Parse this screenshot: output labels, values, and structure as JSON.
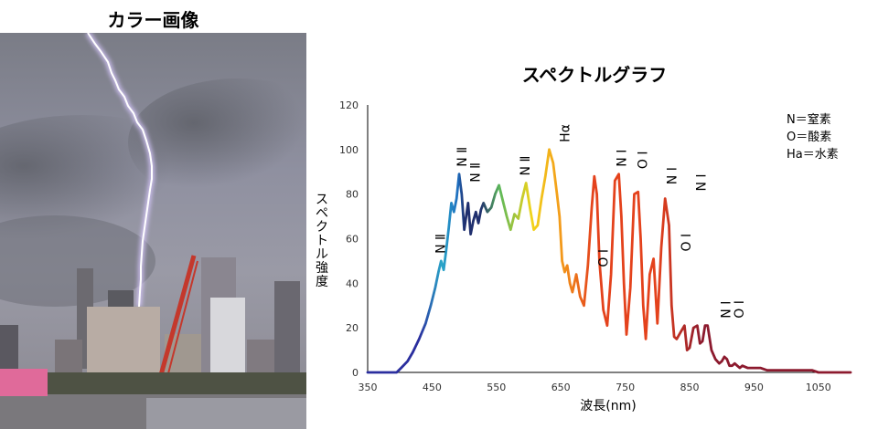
{
  "photo": {
    "title": "カラー画像"
  },
  "chart_data": {
    "type": "line",
    "title": "スペクトルグラフ",
    "xlabel": "波長(nm)",
    "ylabel": "スペクトル強度",
    "xlim": [
      350,
      1100
    ],
    "ylim": [
      0,
      120
    ],
    "xticks": [
      350,
      450,
      550,
      650,
      750,
      850,
      950,
      1050
    ],
    "yticks": [
      0,
      20,
      40,
      60,
      80,
      100,
      120
    ],
    "grid": false,
    "legend": [
      "N＝窒素",
      "O＝酸素",
      "Ha＝水素"
    ],
    "legend_position": "top-right",
    "colors": {
      "violet": "#2a2e9e",
      "blue": "#1f6fc0",
      "cyan": "#2aa7c9",
      "navy": "#1f2f6e",
      "green": "#5cb85a",
      "yellow": "#f2d41a",
      "orange": "#f39a1a",
      "red": "#e4421c",
      "darkred": "#8c1a2e"
    },
    "series": [
      {
        "x": [
          350,
          395,
          402,
          412,
          420,
          430,
          440,
          448,
          455,
          460,
          464,
          468,
          472,
          476,
          480,
          484,
          488,
          492,
          496,
          500,
          503,
          506,
          510,
          514,
          518,
          522,
          526,
          530,
          536,
          542,
          548,
          554,
          560,
          566,
          572,
          578,
          584,
          590,
          596,
          602,
          608,
          614,
          620,
          626,
          632,
          638,
          644,
          648,
          652,
          656,
          660,
          664,
          668,
          674,
          680,
          686,
          692,
          698,
          702,
          706,
          710,
          716,
          722,
          728,
          734,
          740,
          744,
          748,
          752,
          758,
          764,
          770,
          774,
          778,
          782,
          788,
          794,
          800,
          806,
          812,
          818,
          822,
          826,
          830,
          836,
          842,
          846,
          850,
          856,
          862,
          866,
          870,
          874,
          878,
          884,
          890,
          896,
          900,
          904,
          908,
          912,
          916,
          920,
          924,
          928,
          932,
          940,
          950,
          960,
          970,
          980,
          990,
          1000,
          1010,
          1020,
          1030,
          1040,
          1050,
          1060,
          1070,
          1080,
          1090,
          1100
        ],
        "y": [
          0,
          0,
          2,
          5,
          9,
          15,
          22,
          30,
          38,
          45,
          50,
          46,
          55,
          65,
          76,
          72,
          78,
          89,
          80,
          64,
          70,
          76,
          62,
          68,
          72,
          67,
          73,
          76,
          72,
          74,
          80,
          84,
          77,
          70,
          64,
          71,
          69,
          78,
          85,
          74,
          64,
          66,
          78,
          88,
          100,
          94,
          80,
          70,
          50,
          45,
          48,
          40,
          36,
          44,
          34,
          30,
          48,
          74,
          88,
          80,
          50,
          28,
          21,
          44,
          86,
          89,
          70,
          40,
          17,
          38,
          80,
          81,
          60,
          30,
          15,
          44,
          51,
          22,
          56,
          78,
          66,
          30,
          16,
          15,
          18,
          21,
          10,
          11,
          20,
          21,
          13,
          14,
          21,
          21,
          10,
          6,
          4,
          5,
          7,
          6,
          3,
          3,
          4,
          3,
          2,
          3,
          2,
          2,
          2,
          1,
          1,
          1,
          1,
          1,
          1,
          1,
          1,
          0,
          0,
          0,
          0,
          0,
          0
        ]
      }
    ],
    "annotations": [
      {
        "text": "N Ⅱ",
        "x": 463,
        "y": 50
      },
      {
        "text": "N Ⅱ",
        "x": 496,
        "y": 89
      },
      {
        "text": "N Ⅱ",
        "x": 517,
        "y": 82
      },
      {
        "text": "N Ⅱ",
        "x": 594,
        "y": 85
      },
      {
        "text": "Hα",
        "x": 656,
        "y": 100
      },
      {
        "text": "O Ⅰ",
        "x": 716,
        "y": 44
      },
      {
        "text": "N Ⅰ",
        "x": 744,
        "y": 89
      },
      {
        "text": "O Ⅰ",
        "x": 777,
        "y": 88
      },
      {
        "text": "N Ⅰ",
        "x": 822,
        "y": 81
      },
      {
        "text": "O Ⅰ",
        "x": 844,
        "y": 51
      },
      {
        "text": "N Ⅰ",
        "x": 868,
        "y": 78
      },
      {
        "text": "N Ⅰ",
        "x": 906,
        "y": 21
      },
      {
        "text": "O Ⅰ",
        "x": 927,
        "y": 21
      }
    ]
  }
}
